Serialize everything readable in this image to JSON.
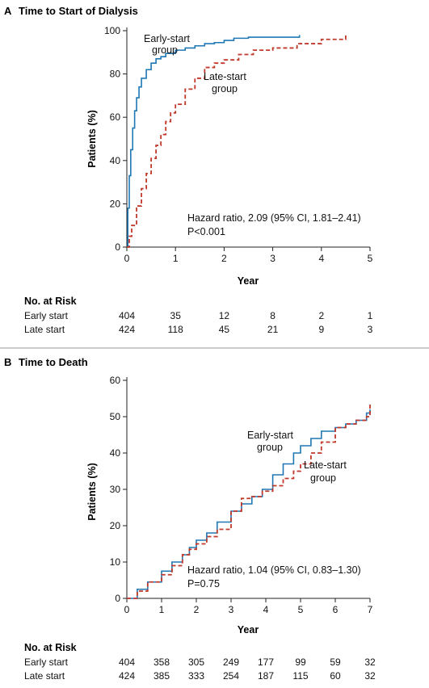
{
  "colors": {
    "early": "#1f77b4",
    "late": "#c0392b",
    "axis": "#222222",
    "divider": "#999999"
  },
  "chart_data": [
    {
      "type": "line",
      "panel": "A",
      "title": "Time to Start of Dialysis",
      "xlabel": "Year",
      "ylabel": "Patients (%)",
      "xlim": [
        0,
        5
      ],
      "ylim": [
        0,
        100
      ],
      "xticks": [
        "0",
        "1",
        "2",
        "3",
        "4",
        "5"
      ],
      "yticks": [
        "0",
        "20",
        "40",
        "60",
        "80",
        "100"
      ],
      "series": [
        {
          "name": "Early-start group",
          "x": [
            0,
            0.02,
            0.05,
            0.08,
            0.12,
            0.16,
            0.2,
            0.25,
            0.3,
            0.4,
            0.5,
            0.6,
            0.7,
            0.8,
            1.0,
            1.2,
            1.4,
            1.6,
            1.8,
            2.0,
            2.2,
            2.5,
            3.0,
            3.55
          ],
          "y": [
            0,
            18,
            33,
            45,
            55,
            63,
            69,
            74,
            78,
            82,
            85,
            87,
            88,
            89.5,
            91,
            92,
            93,
            94,
            94.5,
            95.5,
            96.5,
            97,
            97,
            98
          ]
        },
        {
          "name": "Late-start group",
          "x": [
            0,
            0.05,
            0.1,
            0.2,
            0.3,
            0.4,
            0.5,
            0.6,
            0.7,
            0.8,
            0.9,
            1.0,
            1.2,
            1.4,
            1.6,
            1.8,
            2.0,
            2.3,
            2.6,
            3.0,
            3.5,
            4.0,
            4.5
          ],
          "y": [
            0,
            5,
            10,
            19,
            27,
            34,
            41,
            47,
            52,
            58,
            62,
            66,
            73,
            78,
            83,
            85,
            86.5,
            89,
            91,
            92,
            94,
            96,
            98
          ]
        }
      ],
      "labels": {
        "early": [
          "Early-start",
          "group"
        ],
        "late": [
          "Late-start",
          "group"
        ]
      },
      "annotation": [
        "Hazard ratio, 2.09 (95% CI, 1.81–2.41)",
        "P<0.001"
      ],
      "risk": {
        "header": "No. at Risk",
        "rows": [
          {
            "label": "Early start",
            "values": [
              "404",
              "35",
              "12",
              "8",
              "2",
              "1"
            ]
          },
          {
            "label": "Late start",
            "values": [
              "424",
              "118",
              "45",
              "21",
              "9",
              "3"
            ]
          }
        ]
      }
    },
    {
      "type": "line",
      "panel": "B",
      "title": "Time to Death",
      "xlabel": "Year",
      "ylabel": "Patients (%)",
      "xlim": [
        0,
        7
      ],
      "ylim": [
        0,
        60
      ],
      "xticks": [
        "0",
        "1",
        "2",
        "3",
        "4",
        "5",
        "6",
        "7"
      ],
      "yticks": [
        "0",
        "10",
        "20",
        "30",
        "40",
        "50",
        "60"
      ],
      "series": [
        {
          "name": "Early-start group",
          "x": [
            0,
            0.3,
            0.6,
            1.0,
            1.3,
            1.6,
            1.8,
            2.0,
            2.3,
            2.6,
            3.0,
            3.3,
            3.6,
            3.9,
            4.2,
            4.5,
            4.8,
            5.0,
            5.3,
            5.6,
            6.0,
            6.3,
            6.6,
            6.9,
            7.0
          ],
          "y": [
            0,
            2.5,
            4.5,
            7.5,
            10,
            12,
            14,
            16,
            18,
            21,
            24,
            26,
            28,
            30,
            34,
            37,
            40,
            42,
            44,
            46,
            47,
            48,
            49,
            51,
            52
          ]
        },
        {
          "name": "Late-start group",
          "x": [
            0,
            0.3,
            0.6,
            1.0,
            1.3,
            1.6,
            1.8,
            2.0,
            2.3,
            2.6,
            3.0,
            3.3,
            3.6,
            3.9,
            4.2,
            4.5,
            4.8,
            5.0,
            5.3,
            5.6,
            6.0,
            6.3,
            6.6,
            6.9,
            7.0
          ],
          "y": [
            0,
            2,
            4.5,
            6.5,
            9,
            12,
            13.5,
            15,
            17,
            19,
            24,
            27.5,
            28,
            29.5,
            31,
            33,
            35,
            37,
            40,
            43,
            47,
            48,
            49,
            50,
            54
          ]
        }
      ],
      "labels": {
        "early": [
          "Early-start",
          "group"
        ],
        "late": [
          "Late-start",
          "group"
        ]
      },
      "annotation": [
        "Hazard ratio, 1.04 (95% CI, 0.83–1.30)",
        "P=0.75"
      ],
      "risk": {
        "header": "No. at Risk",
        "rows": [
          {
            "label": "Early start",
            "values": [
              "404",
              "358",
              "305",
              "249",
              "177",
              "99",
              "59",
              "32"
            ]
          },
          {
            "label": "Late start",
            "values": [
              "424",
              "385",
              "333",
              "254",
              "187",
              "115",
              "60",
              "32"
            ]
          }
        ]
      }
    }
  ]
}
